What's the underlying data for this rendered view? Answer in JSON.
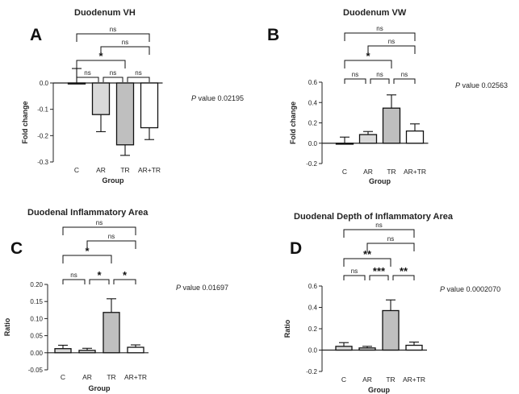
{
  "panels": [
    {
      "letter": "A",
      "pvalue_prefix": "P",
      "pvalue_text": " value 0.02195",
      "chart_data": {
        "type": "bar",
        "title": "Duodenum VH",
        "xlabel": "Group",
        "ylabel": "Fold change",
        "categories": [
          "C",
          "AR",
          "TR",
          "AR+TR"
        ],
        "values": [
          0.0,
          -0.12,
          -0.235,
          -0.17
        ],
        "errors": [
          0.055,
          0.065,
          0.04,
          0.045
        ],
        "fills": [
          "#ffffff",
          "#d9d9d9",
          "#bfbfbf",
          "#ffffff"
        ],
        "ylim": [
          -0.3,
          0.0
        ],
        "yticks": [
          0.0,
          -0.1,
          -0.2,
          -0.3
        ],
        "ytick_labels": [
          "0.0",
          "-0.1",
          "-0.2",
          "-0.3"
        ],
        "comparisons": [
          {
            "from": 0,
            "to": 3,
            "label": "ns"
          },
          {
            "from": 1,
            "to": 3,
            "label": "ns"
          },
          {
            "from": 0,
            "to": 2,
            "label": "*"
          },
          {
            "from": 0,
            "to": 1,
            "label": "ns"
          },
          {
            "from": 1,
            "to": 2,
            "label": "ns"
          },
          {
            "from": 2,
            "to": 3,
            "label": "ns"
          }
        ]
      }
    },
    {
      "letter": "B",
      "pvalue_prefix": "P",
      "pvalue_text": " value 0.02563",
      "chart_data": {
        "type": "bar",
        "title": "Duodenum VW",
        "xlabel": "Group",
        "ylabel": "Fold change",
        "categories": [
          "C",
          "AR",
          "TR",
          "AR+TR"
        ],
        "values": [
          0.0,
          0.085,
          0.345,
          0.12
        ],
        "errors": [
          0.06,
          0.03,
          0.13,
          0.07
        ],
        "fills": [
          "#ffffff",
          "#d9d9d9",
          "#bfbfbf",
          "#ffffff"
        ],
        "ylim": [
          -0.2,
          0.6
        ],
        "yticks": [
          -0.2,
          0.0,
          0.2,
          0.4,
          0.6
        ],
        "ytick_labels": [
          "-0.2",
          "0.0",
          "0.2",
          "0.4",
          "0.6"
        ],
        "comparisons": [
          {
            "from": 0,
            "to": 3,
            "label": "ns"
          },
          {
            "from": 1,
            "to": 3,
            "label": "ns"
          },
          {
            "from": 0,
            "to": 2,
            "label": "*"
          },
          {
            "from": 0,
            "to": 1,
            "label": "ns"
          },
          {
            "from": 1,
            "to": 2,
            "label": "ns"
          },
          {
            "from": 2,
            "to": 3,
            "label": "ns"
          }
        ]
      }
    },
    {
      "letter": "C",
      "pvalue_prefix": "P",
      "pvalue_text": " value 0.01697",
      "chart_data": {
        "type": "bar",
        "title": "Duodenal Inflammatory Area",
        "xlabel": "Group",
        "ylabel": "Ratio",
        "categories": [
          "C",
          "AR",
          "TR",
          "AR+TR"
        ],
        "values": [
          0.012,
          0.007,
          0.118,
          0.016
        ],
        "errors": [
          0.01,
          0.006,
          0.04,
          0.007
        ],
        "fills": [
          "#d9d9d9",
          "#d9d9d9",
          "#bfbfbf",
          "#ffffff"
        ],
        "ylim": [
          -0.05,
          0.2
        ],
        "yticks": [
          -0.05,
          0.0,
          0.05,
          0.1,
          0.15,
          0.2
        ],
        "ytick_labels": [
          "-0.05",
          "0.00",
          "0.05",
          "0.10",
          "0.15",
          "0.20"
        ],
        "comparisons": [
          {
            "from": 0,
            "to": 3,
            "label": "ns"
          },
          {
            "from": 1,
            "to": 3,
            "label": "ns"
          },
          {
            "from": 0,
            "to": 2,
            "label": "*"
          },
          {
            "from": 0,
            "to": 1,
            "label": "ns"
          },
          {
            "from": 1,
            "to": 2,
            "label": "*"
          },
          {
            "from": 2,
            "to": 3,
            "label": "*"
          }
        ]
      }
    },
    {
      "letter": "D",
      "pvalue_prefix": "P",
      "pvalue_text": " value 0.0002070",
      "chart_data": {
        "type": "bar",
        "title": "Duodenal Depth of Inflammatory Area",
        "xlabel": "Group",
        "ylabel": "Ratio",
        "categories": [
          "C",
          "AR",
          "TR",
          "AR+TR"
        ],
        "values": [
          0.035,
          0.02,
          0.37,
          0.045
        ],
        "errors": [
          0.035,
          0.015,
          0.1,
          0.03
        ],
        "fills": [
          "#d9d9d9",
          "#d9d9d9",
          "#bfbfbf",
          "#ffffff"
        ],
        "ylim": [
          -0.2,
          0.6
        ],
        "yticks": [
          -0.2,
          0.0,
          0.2,
          0.4,
          0.6
        ],
        "ytick_labels": [
          "-0.2",
          "0.0",
          "0.2",
          "0.4",
          "0.6"
        ],
        "comparisons": [
          {
            "from": 0,
            "to": 3,
            "label": "ns"
          },
          {
            "from": 1,
            "to": 3,
            "label": "ns"
          },
          {
            "from": 0,
            "to": 2,
            "label": "**"
          },
          {
            "from": 0,
            "to": 1,
            "label": "ns"
          },
          {
            "from": 1,
            "to": 2,
            "label": "***"
          },
          {
            "from": 2,
            "to": 3,
            "label": "**"
          }
        ]
      }
    }
  ]
}
